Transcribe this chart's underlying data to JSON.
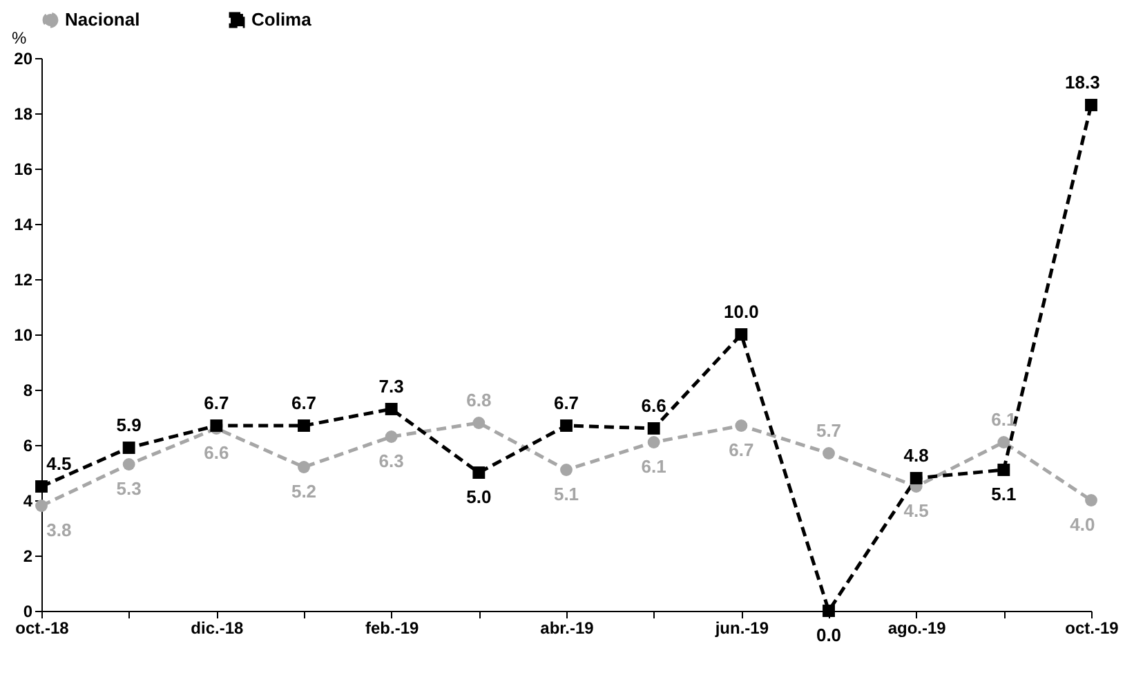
{
  "chart_data": {
    "type": "line",
    "ylabel": "%",
    "categories": [
      "oct.-18",
      null,
      "dic.-18",
      null,
      "feb.-19",
      null,
      "abr.-19",
      null,
      "jun.-19",
      null,
      "ago.-19",
      null,
      "oct.-19"
    ],
    "series": [
      {
        "name": "Nacional",
        "color": "#a6a6a6",
        "marker": "circle",
        "values": [
          3.8,
          5.3,
          6.6,
          5.2,
          6.3,
          6.8,
          5.1,
          6.1,
          6.7,
          5.7,
          4.5,
          6.1,
          4.0
        ],
        "value_labels": [
          "3.8",
          "5.3",
          "6.6",
          "5.2",
          "6.3",
          "6.8",
          "5.1",
          "6.1",
          "6.7",
          "5.7",
          "4.5",
          "6.1",
          "4.0"
        ]
      },
      {
        "name": "Colima",
        "color": "#000000",
        "marker": "square",
        "values": [
          4.5,
          5.9,
          6.7,
          6.7,
          7.3,
          5.0,
          6.7,
          6.6,
          10.0,
          0.0,
          4.8,
          5.1,
          18.3
        ],
        "value_labels": [
          "4.5",
          "5.9",
          "6.7",
          "6.7",
          "7.3",
          "5.0",
          "6.7",
          "6.6",
          "10.0",
          "0.0",
          "4.8",
          "5.1",
          "18.3"
        ]
      }
    ],
    "ylim": [
      0,
      20
    ],
    "yticks": [
      0,
      2,
      4,
      6,
      8,
      10,
      12,
      14,
      16,
      18,
      20
    ],
    "grid": false,
    "legend": "top",
    "line_style": "dashed"
  }
}
